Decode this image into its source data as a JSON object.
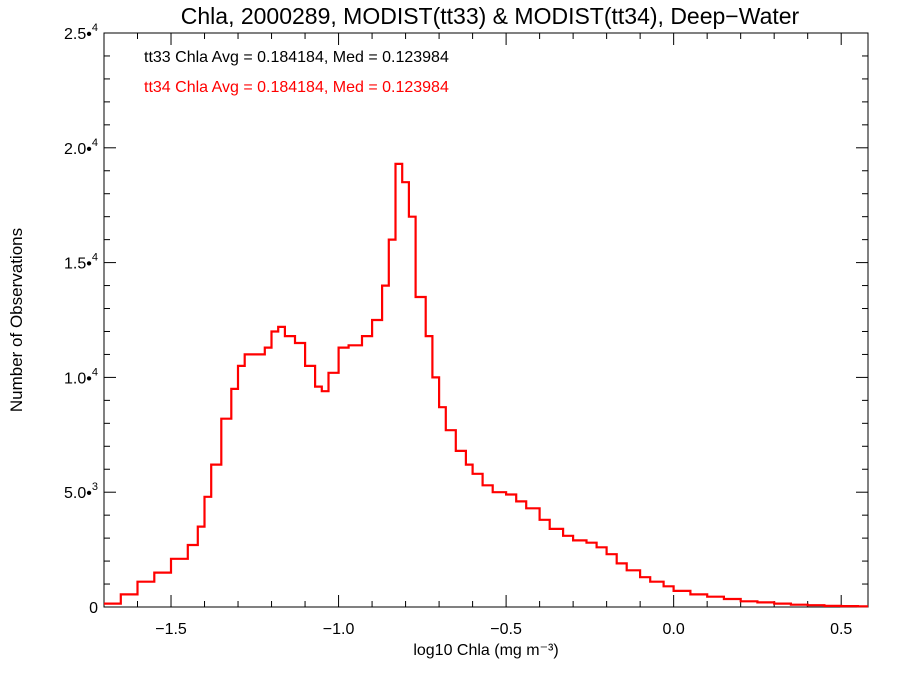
{
  "chart_data": {
    "type": "line",
    "title": "Chla, 2000289, MODIST(tt33) & MODIST(tt34), Deep−Water",
    "xlabel": "log10 Chla (mg m⁻³)",
    "ylabel": "Number of Observations",
    "xlim": [
      -1.7,
      0.58
    ],
    "ylim": [
      0,
      25000
    ],
    "grid": false,
    "x_ticks": [
      {
        "value": -1.5,
        "label": "−1.5"
      },
      {
        "value": -1.0,
        "label": "−1.0"
      },
      {
        "value": -0.5,
        "label": "−0.5"
      },
      {
        "value": 0.0,
        "label": "0.0"
      },
      {
        "value": 0.5,
        "label": "0.5"
      }
    ],
    "y_ticks": [
      {
        "value": 0,
        "mantissa": "0",
        "exponent": ""
      },
      {
        "value": 5000,
        "mantissa": "5.0•",
        "exponent": "3"
      },
      {
        "value": 10000,
        "mantissa": "1.0•",
        "exponent": "4"
      },
      {
        "value": 15000,
        "mantissa": "1.5•",
        "exponent": "4"
      },
      {
        "value": 20000,
        "mantissa": "2.0•",
        "exponent": "4"
      },
      {
        "value": 25000,
        "mantissa": "2.5•",
        "exponent": "4"
      }
    ],
    "annotations": [
      {
        "text": "tt33 Chla Avg = 0.184184, Med = 0.123984",
        "color": "#000000"
      },
      {
        "text": "tt34 Chla Avg = 0.184184, Med = 0.123984",
        "color": "#ff0000"
      }
    ],
    "series": [
      {
        "color": "#ff0000",
        "style": "step",
        "points": [
          [
            -1.7,
            150
          ],
          [
            -1.65,
            550
          ],
          [
            -1.6,
            1100
          ],
          [
            -1.55,
            1500
          ],
          [
            -1.5,
            2100
          ],
          [
            -1.45,
            2700
          ],
          [
            -1.42,
            3500
          ],
          [
            -1.4,
            4800
          ],
          [
            -1.38,
            6200
          ],
          [
            -1.35,
            8200
          ],
          [
            -1.32,
            9500
          ],
          [
            -1.3,
            10500
          ],
          [
            -1.28,
            11000
          ],
          [
            -1.25,
            11000
          ],
          [
            -1.22,
            11300
          ],
          [
            -1.2,
            12000
          ],
          [
            -1.18,
            12200
          ],
          [
            -1.16,
            11800
          ],
          [
            -1.13,
            11500
          ],
          [
            -1.1,
            10500
          ],
          [
            -1.07,
            9600
          ],
          [
            -1.05,
            9400
          ],
          [
            -1.03,
            10200
          ],
          [
            -1.0,
            11300
          ],
          [
            -0.97,
            11400
          ],
          [
            -0.93,
            11800
          ],
          [
            -0.9,
            12500
          ],
          [
            -0.87,
            14000
          ],
          [
            -0.85,
            16000
          ],
          [
            -0.83,
            19300
          ],
          [
            -0.81,
            18500
          ],
          [
            -0.79,
            17000
          ],
          [
            -0.77,
            13500
          ],
          [
            -0.74,
            11800
          ],
          [
            -0.72,
            10000
          ],
          [
            -0.7,
            8700
          ],
          [
            -0.68,
            7700
          ],
          [
            -0.65,
            6800
          ],
          [
            -0.62,
            6200
          ],
          [
            -0.6,
            5800
          ],
          [
            -0.57,
            5300
          ],
          [
            -0.54,
            5000
          ],
          [
            -0.5,
            4900
          ],
          [
            -0.47,
            4600
          ],
          [
            -0.44,
            4300
          ],
          [
            -0.4,
            3800
          ],
          [
            -0.37,
            3400
          ],
          [
            -0.33,
            3100
          ],
          [
            -0.3,
            2900
          ],
          [
            -0.26,
            2800
          ],
          [
            -0.23,
            2600
          ],
          [
            -0.2,
            2300
          ],
          [
            -0.17,
            1900
          ],
          [
            -0.14,
            1600
          ],
          [
            -0.1,
            1300
          ],
          [
            -0.07,
            1100
          ],
          [
            -0.03,
            900
          ],
          [
            0.0,
            700
          ],
          [
            0.05,
            550
          ],
          [
            0.1,
            450
          ],
          [
            0.15,
            350
          ],
          [
            0.2,
            250
          ],
          [
            0.25,
            200
          ],
          [
            0.3,
            150
          ],
          [
            0.35,
            100
          ],
          [
            0.4,
            80
          ],
          [
            0.45,
            50
          ],
          [
            0.5,
            40
          ],
          [
            0.55,
            30
          ],
          [
            0.58,
            30
          ]
        ]
      }
    ]
  }
}
